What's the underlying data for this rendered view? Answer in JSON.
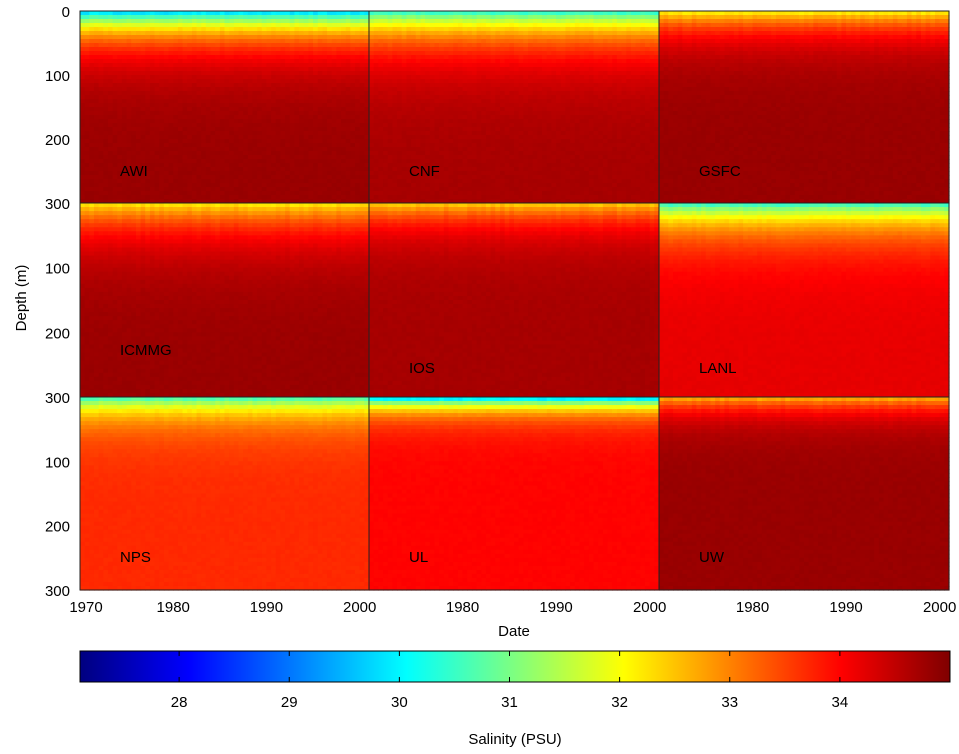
{
  "chart_data": {
    "type": "heatmap",
    "title": "",
    "xlabel": "Date",
    "ylabel": "Depth (m)",
    "colorbar": {
      "label": "Salinity (PSU)",
      "range": [
        27.1,
        35.0
      ],
      "ticks": [
        "28",
        "29",
        "30",
        "31",
        "32",
        "33",
        "34"
      ],
      "tick_values": [
        28,
        29,
        30,
        31,
        32,
        33,
        34
      ],
      "colormap": "jet",
      "colors": [
        "#00007f",
        "#0000ff",
        "#007fff",
        "#00ffff",
        "#7fff7f",
        "#ffff00",
        "#ff7f00",
        "#ff0000",
        "#7f0000"
      ]
    },
    "y_axis": {
      "range": [
        0,
        300
      ],
      "reversed": true,
      "row_ticks": [
        [
          "0",
          "100",
          "200",
          "300"
        ],
        [
          "100",
          "200",
          "300"
        ],
        [
          "100",
          "200",
          "300"
        ]
      ]
    },
    "x_axis": {
      "range": [
        1970,
        2001
      ],
      "col_ticks": [
        [
          "1970",
          "1980",
          "1990",
          "2000"
        ],
        [
          "1980",
          "1990",
          "2000"
        ],
        [
          "1980",
          "1990",
          "2000"
        ]
      ]
    },
    "panels": [
      {
        "name": "AWI",
        "surface_min": 29.5,
        "mixed_layer_m": 40,
        "deep": 34.8,
        "seasonal_amp": 1.6
      },
      {
        "name": "CNF",
        "surface_min": 30.2,
        "mixed_layer_m": 45,
        "deep": 34.7,
        "seasonal_amp": 1.6
      },
      {
        "name": "GSFC",
        "surface_min": 32.0,
        "mixed_layer_m": 35,
        "deep": 34.8,
        "seasonal_amp": 1.0
      },
      {
        "name": "ICMMG",
        "surface_min": 32.1,
        "mixed_layer_m": 45,
        "deep": 34.8,
        "seasonal_amp": 0.5
      },
      {
        "name": "IOS",
        "surface_min": 32.3,
        "mixed_layer_m": 35,
        "deep": 34.7,
        "seasonal_amp": 0.8
      },
      {
        "name": "LANL",
        "surface_min": 30.3,
        "mixed_layer_m": 40,
        "deep": 34.2,
        "seasonal_amp": 1.2
      },
      {
        "name": "NPS",
        "surface_min": 30.4,
        "mixed_layer_m": 30,
        "deep": 33.7,
        "seasonal_amp": 1.2
      },
      {
        "name": "UL",
        "surface_min": 29.3,
        "mixed_layer_m": 20,
        "deep": 34.0,
        "seasonal_amp": 1.5
      },
      {
        "name": "UW",
        "surface_min": 32.5,
        "mixed_layer_m": 25,
        "deep": 34.8,
        "seasonal_amp": 0.6
      }
    ]
  }
}
